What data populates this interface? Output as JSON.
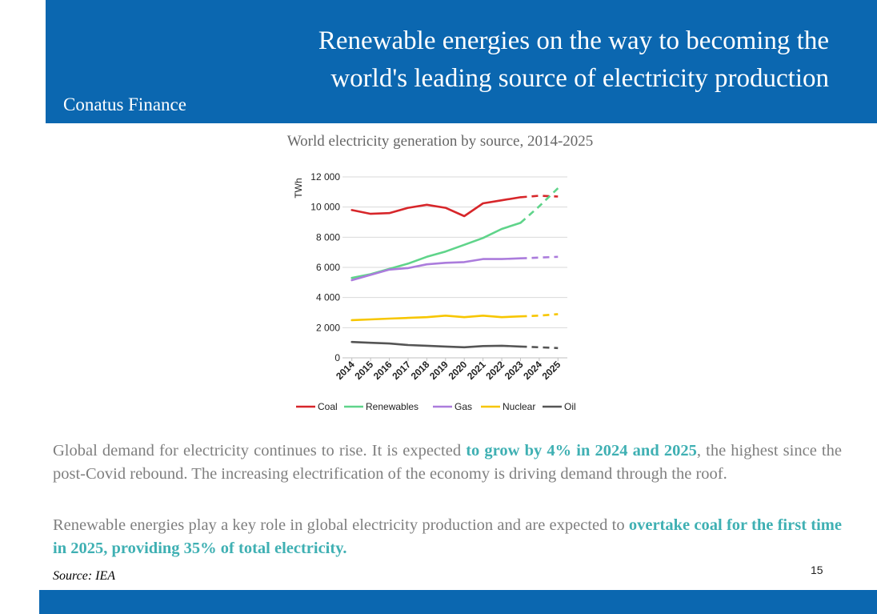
{
  "header": {
    "title_line1": "Renewable energies on the way to becoming the",
    "title_line2": "world's leading source of electricity production",
    "brand": "Conatus Finance"
  },
  "chart_data": {
    "type": "line",
    "title": "World electricity generation by source, 2014-2025",
    "ylabel": "TWh",
    "xlabel": "",
    "x": [
      "2014",
      "2015",
      "2016",
      "2017",
      "2018",
      "2019",
      "2020",
      "2021",
      "2022",
      "2023",
      "2024",
      "2025"
    ],
    "y_ticks": [
      "0",
      "2 000",
      "4 000",
      "6 000",
      "8 000",
      "10 000",
      "12 000"
    ],
    "ylim": [
      0,
      12000
    ],
    "grid": true,
    "legend_position": "bottom",
    "forecast_from": "2023",
    "forecast_style": "dashed",
    "series": [
      {
        "name": "Coal",
        "color": "#d7262a",
        "values": [
          9800,
          9550,
          9600,
          9950,
          10150,
          9950,
          9400,
          10250,
          10450,
          10650,
          10750,
          10700
        ]
      },
      {
        "name": "Renewables",
        "color": "#5fd48a",
        "values": [
          5300,
          5550,
          5900,
          6250,
          6700,
          7050,
          7500,
          7950,
          8550,
          8950,
          10050,
          11250
        ]
      },
      {
        "name": "Gas",
        "color": "#ab7cdc",
        "values": [
          5150,
          5500,
          5850,
          5950,
          6200,
          6300,
          6350,
          6550,
          6550,
          6600,
          6650,
          6700
        ]
      },
      {
        "name": "Nuclear",
        "color": "#f7c600",
        "values": [
          2500,
          2550,
          2600,
          2650,
          2700,
          2800,
          2700,
          2800,
          2700,
          2750,
          2800,
          2900
        ]
      },
      {
        "name": "Oil",
        "color": "#555555",
        "values": [
          1050,
          1000,
          950,
          850,
          800,
          750,
          700,
          780,
          800,
          750,
          700,
          650
        ]
      }
    ]
  },
  "body": {
    "p1_a": "Global demand for electricity continues to rise. It is expected ",
    "p1_b": "to grow by 4% in 2024 and 2025",
    "p1_c": ", the highest since the post-Covid rebound. The increasing electrification of the economy is driving demand through the roof.",
    "p2_a": "Renewable energies play a key role in global electricity production and are expected to ",
    "p2_b": "overtake coal for the first time in 2025, providing 35% of total electricity."
  },
  "footer": {
    "source": "Source: IEA",
    "page_number": "15"
  },
  "colors": {
    "brand_blue": "#0b67b0",
    "highlight": "#3fb0b3",
    "text_grey": "#7f7f7f"
  }
}
